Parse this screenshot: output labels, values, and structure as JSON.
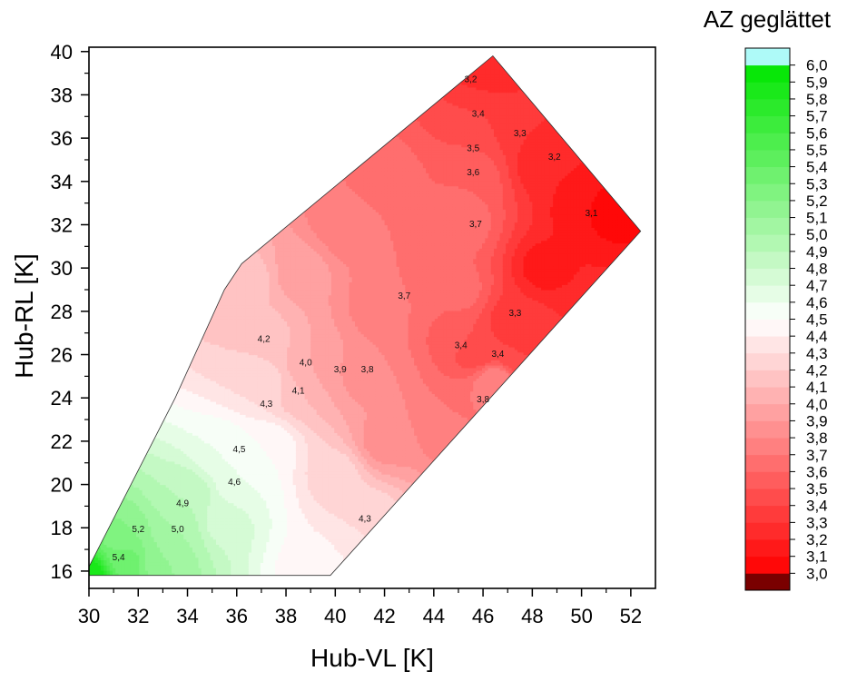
{
  "chart_data": {
    "type": "heatmap",
    "subtype": "filled-contour",
    "xlabel": "Hub-VL [K]",
    "ylabel": "Hub-RL [K]",
    "xlim": [
      30,
      53
    ],
    "ylim": [
      15.2,
      40.2
    ],
    "x_ticks": [
      30,
      32,
      34,
      36,
      38,
      40,
      42,
      44,
      46,
      48,
      50,
      52
    ],
    "x_tick_labels": [
      "30",
      "32",
      "34",
      "36",
      "38",
      "40",
      "42",
      "44",
      "46",
      "48",
      "50",
      "52"
    ],
    "y_ticks": [
      16,
      18,
      20,
      22,
      24,
      26,
      28,
      30,
      32,
      34,
      36,
      38,
      40
    ],
    "y_tick_labels": [
      "16",
      "18",
      "20",
      "22",
      "24",
      "26",
      "28",
      "30",
      "32",
      "34",
      "36",
      "38",
      "40"
    ],
    "grid": false,
    "colorbar": {
      "title": "AZ geglättet",
      "min": 3.0,
      "max": 6.0,
      "levels": [
        3.0,
        3.1,
        3.2,
        3.3,
        3.4,
        3.5,
        3.6,
        3.7,
        3.8,
        3.9,
        4.0,
        4.1,
        4.2,
        4.3,
        4.4,
        4.5,
        4.6,
        4.7,
        4.8,
        4.9,
        5.0,
        5.1,
        5.2,
        5.3,
        5.4,
        5.5,
        5.6,
        5.7,
        5.8,
        5.9,
        6.0
      ],
      "tick_labels": [
        "3,0",
        "3,1",
        "3,2",
        "3,3",
        "3,4",
        "3,5",
        "3,6",
        "3,7",
        "3,8",
        "3,9",
        "4,0",
        "4,1",
        "4,2",
        "4,3",
        "4,4",
        "4,5",
        "4,6",
        "4,7",
        "4,8",
        "4,9",
        "5,0",
        "5,1",
        "5,2",
        "5,3",
        "5,4",
        "5,5",
        "5,6",
        "5,7",
        "5,8",
        "5,9",
        "6,0"
      ],
      "below_color": "#7a0000",
      "above_color": "#aefaf8",
      "low_color": "#ff0000",
      "mid_color": "#ffffff",
      "high_color": "#00e600",
      "mid_value": 4.5
    },
    "data_region": [
      [
        30.0,
        15.8
      ],
      [
        39.8,
        15.8
      ],
      [
        52.4,
        31.7
      ],
      [
        46.4,
        39.8
      ],
      [
        36.2,
        30.2
      ],
      [
        35.5,
        29.0
      ],
      [
        33.5,
        24.0
      ],
      [
        30.0,
        16.2
      ]
    ],
    "field_nodes": [
      {
        "x": 30.0,
        "y": 15.8,
        "z": 5.9
      },
      {
        "x": 31.5,
        "y": 16.5,
        "z": 5.35
      },
      {
        "x": 31.5,
        "y": 17.6,
        "z": 5.2
      },
      {
        "x": 33.0,
        "y": 16.6,
        "z": 5.1
      },
      {
        "x": 33.5,
        "y": 17.9,
        "z": 5.0
      },
      {
        "x": 34.0,
        "y": 19.5,
        "z": 4.9
      },
      {
        "x": 35.5,
        "y": 18.4,
        "z": 4.75
      },
      {
        "x": 35.5,
        "y": 21.5,
        "z": 4.6
      },
      {
        "x": 36.2,
        "y": 20.0,
        "z": 4.6
      },
      {
        "x": 37.2,
        "y": 21.8,
        "z": 4.5
      },
      {
        "x": 39.0,
        "y": 16.2,
        "z": 4.45
      },
      {
        "x": 37.2,
        "y": 24.5,
        "z": 4.3
      },
      {
        "x": 37.0,
        "y": 26.5,
        "z": 4.2
      },
      {
        "x": 38.5,
        "y": 24.4,
        "z": 4.1
      },
      {
        "x": 40.0,
        "y": 20.5,
        "z": 4.25
      },
      {
        "x": 41.2,
        "y": 18.4,
        "z": 4.3
      },
      {
        "x": 39.0,
        "y": 25.6,
        "z": 4.0
      },
      {
        "x": 40.1,
        "y": 25.4,
        "z": 3.9
      },
      {
        "x": 41.3,
        "y": 25.3,
        "z": 3.8
      },
      {
        "x": 36.5,
        "y": 29.5,
        "z": 4.15
      },
      {
        "x": 38.5,
        "y": 29.8,
        "z": 3.95
      },
      {
        "x": 42.0,
        "y": 22.0,
        "z": 3.85
      },
      {
        "x": 44.5,
        "y": 22.8,
        "z": 3.7
      },
      {
        "x": 42.0,
        "y": 28.0,
        "z": 3.72
      },
      {
        "x": 43.0,
        "y": 28.4,
        "z": 3.7
      },
      {
        "x": 44.8,
        "y": 27.0,
        "z": 3.55
      },
      {
        "x": 45.8,
        "y": 26.2,
        "z": 3.4
      },
      {
        "x": 46.5,
        "y": 24.8,
        "z": 3.8
      },
      {
        "x": 47.3,
        "y": 26.0,
        "z": 3.4
      },
      {
        "x": 47.3,
        "y": 27.5,
        "z": 3.3
      },
      {
        "x": 45.0,
        "y": 29.0,
        "z": 3.65
      },
      {
        "x": 40.5,
        "y": 32.0,
        "z": 3.72
      },
      {
        "x": 42.0,
        "y": 34.0,
        "z": 3.68
      },
      {
        "x": 45.0,
        "y": 32.2,
        "z": 3.7
      },
      {
        "x": 45.5,
        "y": 34.2,
        "z": 3.6
      },
      {
        "x": 45.5,
        "y": 35.6,
        "z": 3.5
      },
      {
        "x": 45.8,
        "y": 37.2,
        "z": 3.4
      },
      {
        "x": 46.2,
        "y": 39.2,
        "z": 3.2
      },
      {
        "x": 47.5,
        "y": 36.5,
        "z": 3.3
      },
      {
        "x": 48.5,
        "y": 34.8,
        "z": 3.2
      },
      {
        "x": 50.3,
        "y": 32.8,
        "z": 3.1
      },
      {
        "x": 51.5,
        "y": 32.5,
        "z": 3.05
      },
      {
        "x": 48.5,
        "y": 30.0,
        "z": 3.15
      },
      {
        "x": 50.0,
        "y": 29.0,
        "z": 3.2
      },
      {
        "x": 48.0,
        "y": 27.0,
        "z": 3.35
      }
    ],
    "contour_labels": [
      {
        "text": "3,2",
        "x": 45.5,
        "y": 38.7
      },
      {
        "text": "3,4",
        "x": 45.8,
        "y": 37.1
      },
      {
        "text": "3,3",
        "x": 47.5,
        "y": 36.2
      },
      {
        "text": "3,5",
        "x": 45.6,
        "y": 35.5
      },
      {
        "text": "3,2",
        "x": 48.9,
        "y": 35.1
      },
      {
        "text": "3,6",
        "x": 45.6,
        "y": 34.4
      },
      {
        "text": "3,1",
        "x": 50.4,
        "y": 32.5
      },
      {
        "text": "3,7",
        "x": 45.7,
        "y": 32.0
      },
      {
        "text": "3,7",
        "x": 42.8,
        "y": 28.7
      },
      {
        "text": "3,3",
        "x": 47.3,
        "y": 27.9
      },
      {
        "text": "4,2",
        "x": 37.1,
        "y": 26.7
      },
      {
        "text": "3,4",
        "x": 45.1,
        "y": 26.4
      },
      {
        "text": "3,4",
        "x": 46.6,
        "y": 26.0
      },
      {
        "text": "4,0",
        "x": 38.8,
        "y": 25.6
      },
      {
        "text": "3,9",
        "x": 40.2,
        "y": 25.3
      },
      {
        "text": "3,8",
        "x": 41.3,
        "y": 25.3
      },
      {
        "text": "3,8",
        "x": 46.0,
        "y": 23.9
      },
      {
        "text": "4,1",
        "x": 38.5,
        "y": 24.3
      },
      {
        "text": "4,3",
        "x": 37.2,
        "y": 23.7
      },
      {
        "text": "4,5",
        "x": 36.1,
        "y": 21.6
      },
      {
        "text": "4,6",
        "x": 35.9,
        "y": 20.1
      },
      {
        "text": "4,9",
        "x": 33.8,
        "y": 19.1
      },
      {
        "text": "4,3",
        "x": 41.2,
        "y": 18.4
      },
      {
        "text": "5,2",
        "x": 32.0,
        "y": 17.9
      },
      {
        "text": "5,0",
        "x": 33.6,
        "y": 17.9
      },
      {
        "text": "5,4",
        "x": 31.2,
        "y": 16.6
      }
    ]
  }
}
